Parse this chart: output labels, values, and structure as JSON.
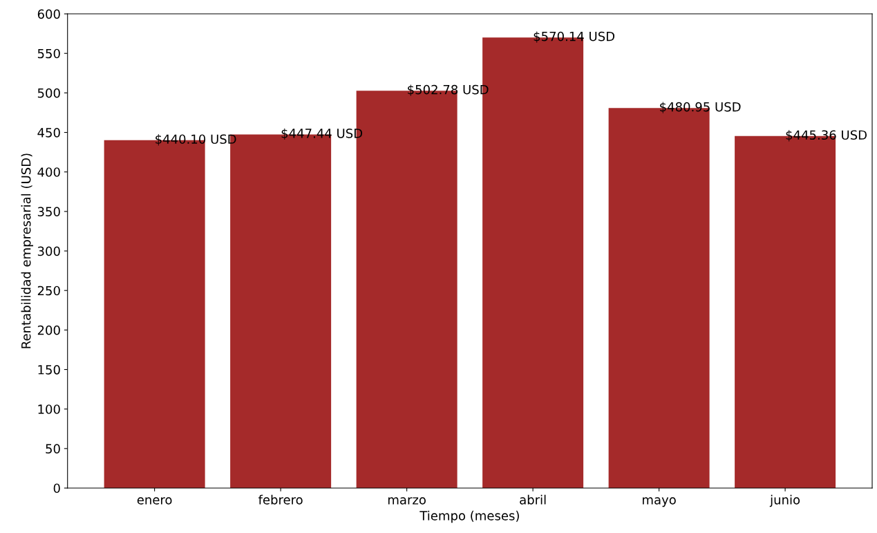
{
  "chart_data": {
    "type": "bar",
    "xlabel": "Tiempo (meses)",
    "ylabel": "Rentabilidad empresarial (USD)",
    "categories": [
      "enero",
      "febrero",
      "marzo",
      "abril",
      "mayo",
      "junio"
    ],
    "values": [
      440.1,
      447.44,
      502.78,
      570.14,
      480.95,
      445.36
    ],
    "value_labels": [
      "$440.10 USD",
      "$447.44 USD",
      "$502.78 USD",
      "$570.14 USD",
      "$480.95 USD",
      "$445.36 USD"
    ],
    "color": "#a52a2a",
    "ylim": [
      0,
      600
    ],
    "yticks": [
      0,
      50,
      100,
      150,
      200,
      250,
      300,
      350,
      400,
      450,
      500,
      550,
      600
    ],
    "grid": false
  }
}
